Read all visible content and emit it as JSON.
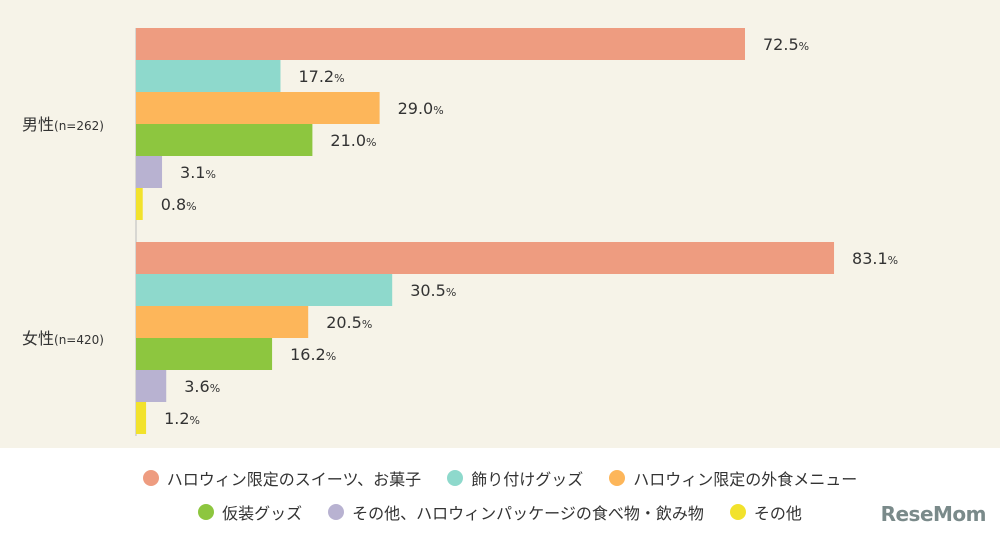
{
  "chart_data": {
    "type": "bar",
    "orientation": "horizontal",
    "value_suffix": "%",
    "categories": [
      "男性(n=262)",
      "女性(n=420)"
    ],
    "category_parts": [
      {
        "main": "男性",
        "sub": "(n=262)"
      },
      {
        "main": "女性",
        "sub": "(n=420)"
      }
    ],
    "xlim": [
      0,
      100
    ],
    "grid": false,
    "legend": "bottom",
    "series": [
      {
        "name": "ハロウィン限定のスイーツ、お菓子",
        "color": "#ee9c80",
        "values": [
          72.5,
          83.1
        ]
      },
      {
        "name": "飾り付けグッズ",
        "color": "#8ed9cc",
        "values": [
          17.2,
          30.5
        ]
      },
      {
        "name": "ハロウィン限定の外食メニュー",
        "color": "#fdb65a",
        "values": [
          29.0,
          20.5
        ]
      },
      {
        "name": "仮装グッズ",
        "color": "#8dc63f",
        "values": [
          21.0,
          16.2
        ]
      },
      {
        "name": "その他、ハロウィンパッケージの食べ物・飲み物",
        "color": "#b8b2d1",
        "values": [
          3.1,
          3.6
        ]
      },
      {
        "name": "その他",
        "color": "#f2e22c",
        "values": [
          0.8,
          1.2
        ]
      }
    ]
  },
  "logo": {
    "text": "ReseMom"
  }
}
